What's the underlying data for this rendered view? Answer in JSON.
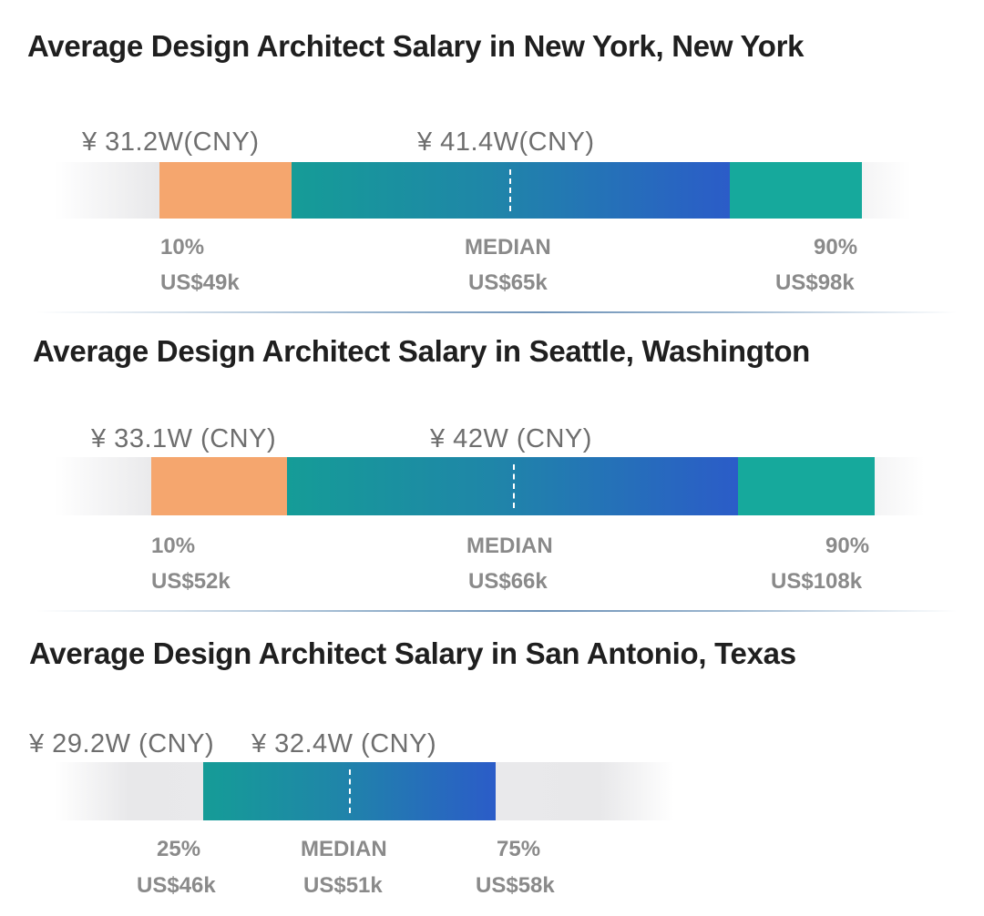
{
  "chart_data": [
    {
      "type": "bar",
      "title": "Average Design Architect Salary in New York, New York",
      "unit": "US$k",
      "markers": [
        {
          "label": "10%",
          "value": 49,
          "value_text": "US$49k"
        },
        {
          "label": "MEDIAN",
          "value": 65,
          "value_text": "US$65k"
        },
        {
          "label": "90%",
          "value": 98,
          "value_text": "US$98k"
        }
      ],
      "cny_labels": [
        "¥ 31.2W(CNY)",
        "¥ 41.4W(CNY)"
      ],
      "colors": {
        "low": "#f5a66e",
        "mid_start": "#159c97",
        "mid_end": "#2b5cc8",
        "high": "#16a99c"
      }
    },
    {
      "type": "bar",
      "title": "Average Design Architect Salary in Seattle, Washington",
      "unit": "US$k",
      "markers": [
        {
          "label": "10%",
          "value": 52,
          "value_text": "US$52k"
        },
        {
          "label": "MEDIAN",
          "value": 66,
          "value_text": "US$66k"
        },
        {
          "label": "90%",
          "value": 108,
          "value_text": "US$108k"
        }
      ],
      "cny_labels": [
        "¥ 33.1W (CNY)",
        "¥ 42W (CNY)"
      ],
      "colors": {
        "low": "#f5a66e",
        "mid_start": "#159c97",
        "mid_end": "#2b5cc8",
        "high": "#16a99c"
      }
    },
    {
      "type": "bar",
      "title": "Average Design Architect Salary in San Antonio, Texas",
      "unit": "US$k",
      "markers": [
        {
          "label": "25%",
          "value": 46,
          "value_text": "US$46k"
        },
        {
          "label": "MEDIAN",
          "value": 51,
          "value_text": "US$51k"
        },
        {
          "label": "75%",
          "value": 58,
          "value_text": "US$58k"
        }
      ],
      "cny_labels": [
        "¥ 29.2W (CNY)",
        "¥ 32.4W (CNY)"
      ],
      "colors": {
        "mid_start": "#159c97",
        "mid_end": "#2b5cc8"
      }
    }
  ]
}
